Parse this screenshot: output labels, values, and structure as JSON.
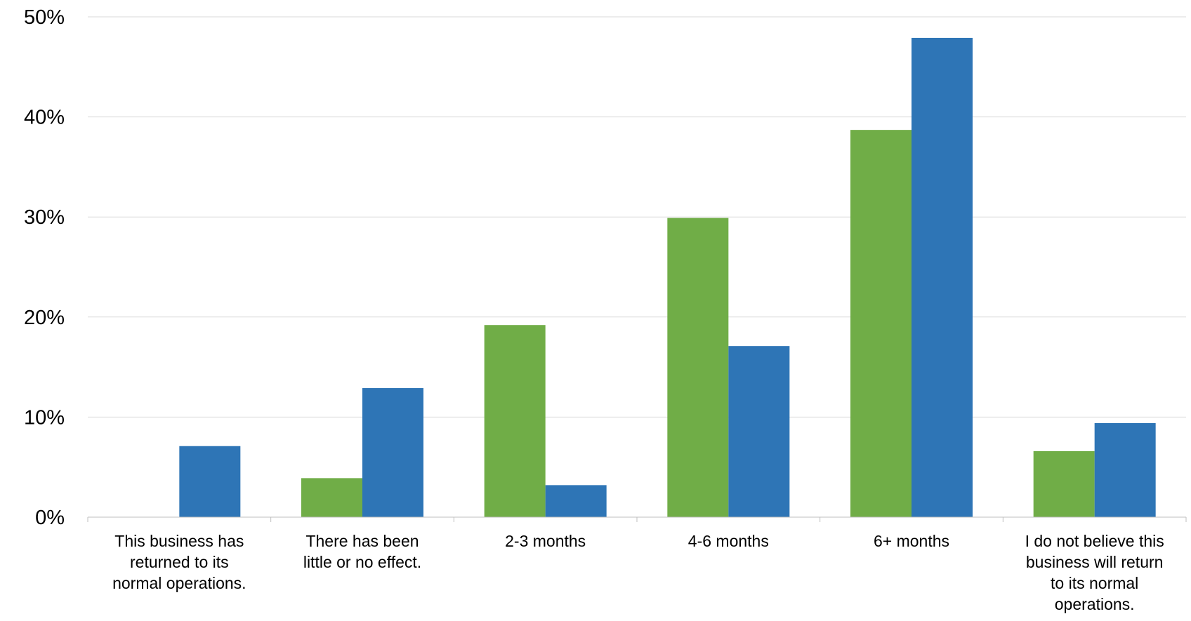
{
  "chart_data": {
    "type": "bar",
    "categories": [
      [
        "This business has",
        "returned to its",
        "normal operations."
      ],
      [
        "There has been",
        "little or no effect."
      ],
      [
        "2-3 months"
      ],
      [
        "4-6 months"
      ],
      [
        "6+ months"
      ],
      [
        "I do not believe this",
        "business will return",
        "to its normal",
        "operations."
      ]
    ],
    "series": [
      {
        "color": "#70ad47",
        "values": [
          0,
          3.9,
          19.2,
          29.9,
          38.7,
          6.6
        ]
      },
      {
        "color": "#2e75b6",
        "values": [
          7.1,
          12.9,
          3.2,
          17.1,
          47.9,
          9.4
        ]
      }
    ],
    "ylim": [
      0,
      50
    ],
    "yticks": [
      "0%",
      "10%",
      "20%",
      "30%",
      "40%",
      "50%"
    ],
    "ytick_values": [
      0,
      10,
      20,
      30,
      40,
      50
    ],
    "grid": true,
    "legend": "none"
  }
}
